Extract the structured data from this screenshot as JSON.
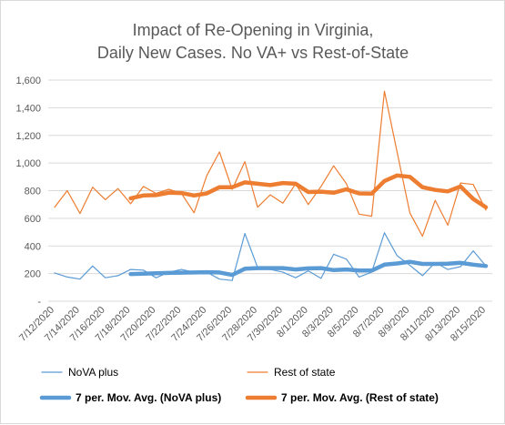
{
  "chart_data": {
    "type": "line",
    "title": [
      "Impact of Re-Opening in Virginia,",
      "Daily New Cases. No VA+ vs Rest-of-State"
    ],
    "xlabel": "",
    "ylabel": "",
    "ylim": [
      0,
      1600
    ],
    "y_ticks": [
      "-",
      "200",
      "400",
      "600",
      "800",
      "1,000",
      "1,200",
      "1,400",
      "1,600"
    ],
    "grid": "horizontal",
    "legend_position": "bottom",
    "x": [
      "7/12/2020",
      "7/13/2020",
      "7/14/2020",
      "7/15/2020",
      "7/16/2020",
      "7/17/2020",
      "7/18/2020",
      "7/19/2020",
      "7/20/2020",
      "7/21/2020",
      "7/22/2020",
      "7/23/2020",
      "7/24/2020",
      "7/25/2020",
      "7/26/2020",
      "7/27/2020",
      "7/28/2020",
      "7/29/2020",
      "7/30/2020",
      "7/31/2020",
      "8/1/2020",
      "8/2/2020",
      "8/3/2020",
      "8/4/2020",
      "8/5/2020",
      "8/6/2020",
      "8/7/2020",
      "8/8/2020",
      "8/9/2020",
      "8/10/2020",
      "8/11/2020",
      "8/12/2020",
      "8/13/2020",
      "8/14/2020",
      "8/15/2020"
    ],
    "x_tick_labels": [
      "7/12/2020",
      "7/14/2020",
      "7/16/2020",
      "7/18/2020",
      "7/20/2020",
      "7/22/2020",
      "7/24/2020",
      "7/26/2020",
      "7/28/2020",
      "7/30/2020",
      "8/1/2020",
      "8/3/2020",
      "8/5/2020",
      "8/7/2020",
      "8/9/2020",
      "8/11/2020",
      "8/13/2020",
      "8/15/2020"
    ],
    "series": [
      {
        "name": "NoVA plus",
        "color": "#5b9bd5",
        "line_width": "thin",
        "values": [
          205,
          175,
          160,
          255,
          170,
          185,
          230,
          225,
          170,
          210,
          230,
          210,
          210,
          160,
          150,
          490,
          245,
          230,
          210,
          170,
          220,
          165,
          340,
          305,
          175,
          210,
          495,
          330,
          260,
          185,
          280,
          230,
          250,
          365,
          255
        ]
      },
      {
        "name": "Rest of state",
        "color": "#ed7d31",
        "line_width": "thin",
        "values": [
          680,
          800,
          635,
          825,
          735,
          815,
          705,
          830,
          780,
          810,
          780,
          640,
          910,
          1080,
          810,
          1010,
          680,
          770,
          710,
          850,
          700,
          830,
          980,
          850,
          630,
          615,
          1520,
          1080,
          640,
          470,
          730,
          550,
          855,
          845,
          660
        ]
      },
      {
        "name": "7 per. Mov. Avg. (NoVA plus)",
        "color": "#5b9bd5",
        "line_width": "thick",
        "values": [
          null,
          null,
          null,
          null,
          null,
          null,
          197,
          199,
          202,
          205,
          207,
          208,
          210,
          208,
          190,
          235,
          240,
          240,
          240,
          230,
          238,
          240,
          225,
          230,
          222,
          222,
          265,
          273,
          285,
          270,
          270,
          272,
          278,
          265,
          255
        ]
      },
      {
        "name": "7 per. Mov. Avg. (Rest of state)",
        "color": "#ed7d31",
        "line_width": "thick",
        "values": [
          null,
          null,
          null,
          null,
          null,
          null,
          745,
          765,
          768,
          785,
          783,
          765,
          780,
          825,
          825,
          860,
          850,
          840,
          855,
          850,
          790,
          793,
          785,
          810,
          780,
          778,
          870,
          910,
          900,
          825,
          805,
          795,
          830,
          740,
          680
        ]
      }
    ]
  }
}
